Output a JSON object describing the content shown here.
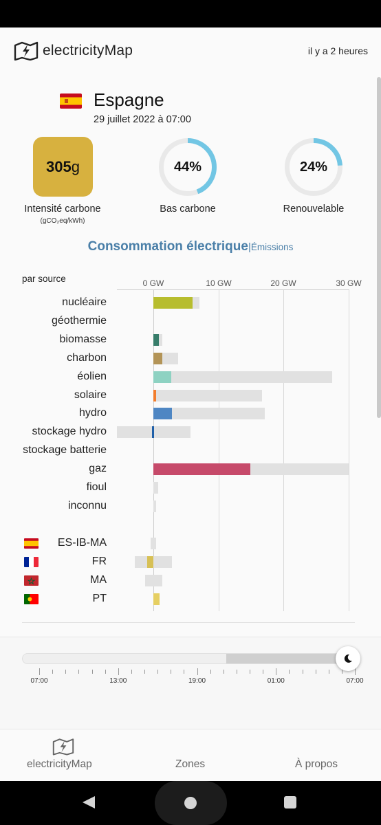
{
  "header": {
    "app_name": "electricityMap",
    "updated": "il y a 2 heures"
  },
  "zone": {
    "country": "Espagne",
    "datetime": "29 juillet 2022 à 07:00"
  },
  "metrics": {
    "carbon_intensity": {
      "value": "305",
      "unit": "g",
      "label": "Intensité carbone",
      "sub": "(gCO₂eq/kWh)",
      "color": "#d7b13f"
    },
    "low_carbon": {
      "value": "44%",
      "fraction": 0.44,
      "label": "Bas carbone",
      "color": "#72c6e4"
    },
    "renewable": {
      "value": "24%",
      "fraction": 0.24,
      "label": "Renouvelable",
      "color": "#72c6e4"
    }
  },
  "tabs": {
    "active": "Consommation électrique",
    "separator": "|",
    "inactive": "Émissions"
  },
  "chart_data": {
    "type": "bar",
    "title": "par source",
    "axis_ticks": [
      "0 GW",
      "10 GW",
      "20 GW",
      "30 GW"
    ],
    "xlim": [
      -5.6,
      30
    ],
    "sources": [
      {
        "name": "nucléaire",
        "value": 6.0,
        "capacity": 7.1,
        "color": "#b7bd2e"
      },
      {
        "name": "géothermie",
        "value": 0,
        "capacity": 0,
        "color": "#ff7f50"
      },
      {
        "name": "biomasse",
        "value": 0.8,
        "capacity": 1.4,
        "color": "#377d6a"
      },
      {
        "name": "charbon",
        "value": 1.4,
        "capacity": 3.8,
        "color": "#b39457"
      },
      {
        "name": "éolien",
        "value": 2.7,
        "capacity": 27.5,
        "color": "#8ed2c2"
      },
      {
        "name": "solaire",
        "value": 0.4,
        "capacity": 16.7,
        "color": "#f27d2d"
      },
      {
        "name": "hydro",
        "value": 2.8,
        "capacity": 17.1,
        "color": "#4e86c3"
      },
      {
        "name": "stockage hydro",
        "value": -0.2,
        "min": -5.6,
        "capacity": 5.7,
        "color": "#1f5fa8"
      },
      {
        "name": "stockage batterie",
        "value": 0,
        "capacity": 0,
        "color": "#8aa9d3"
      },
      {
        "name": "gaz",
        "value": 14.9,
        "capacity": 30.0,
        "color": "#c64a6a"
      },
      {
        "name": "fioul",
        "value": 0,
        "capacity": 0.7,
        "color": "#9d5a8f"
      },
      {
        "name": "inconnu",
        "value": 0,
        "capacity": 0.4,
        "color": "#9a9a9a"
      }
    ],
    "exchanges": [
      {
        "name": "ES-IB-MA",
        "flag": "es",
        "value": 0,
        "min": -0.4,
        "capacity": 0.4,
        "color": "#d7b13f"
      },
      {
        "name": "FR",
        "flag": "fr",
        "value": -1.0,
        "min": -2.8,
        "capacity": 2.8,
        "color": "#d7c055"
      },
      {
        "name": "MA",
        "flag": "ma",
        "value": 0,
        "min": -1.3,
        "capacity": 1.4,
        "color": "#d7c055"
      },
      {
        "name": "PT",
        "flag": "pt",
        "value": 0.9,
        "min": 0,
        "capacity": 0.9,
        "color": "#e6cf62"
      }
    ]
  },
  "timeline": {
    "labels": [
      "07:00",
      "13:00",
      "19:00",
      "01:00",
      "07:00"
    ],
    "position": 1.0
  },
  "bottom_nav": {
    "home": "electricityMap",
    "zones": "Zones",
    "about": "À propos"
  }
}
